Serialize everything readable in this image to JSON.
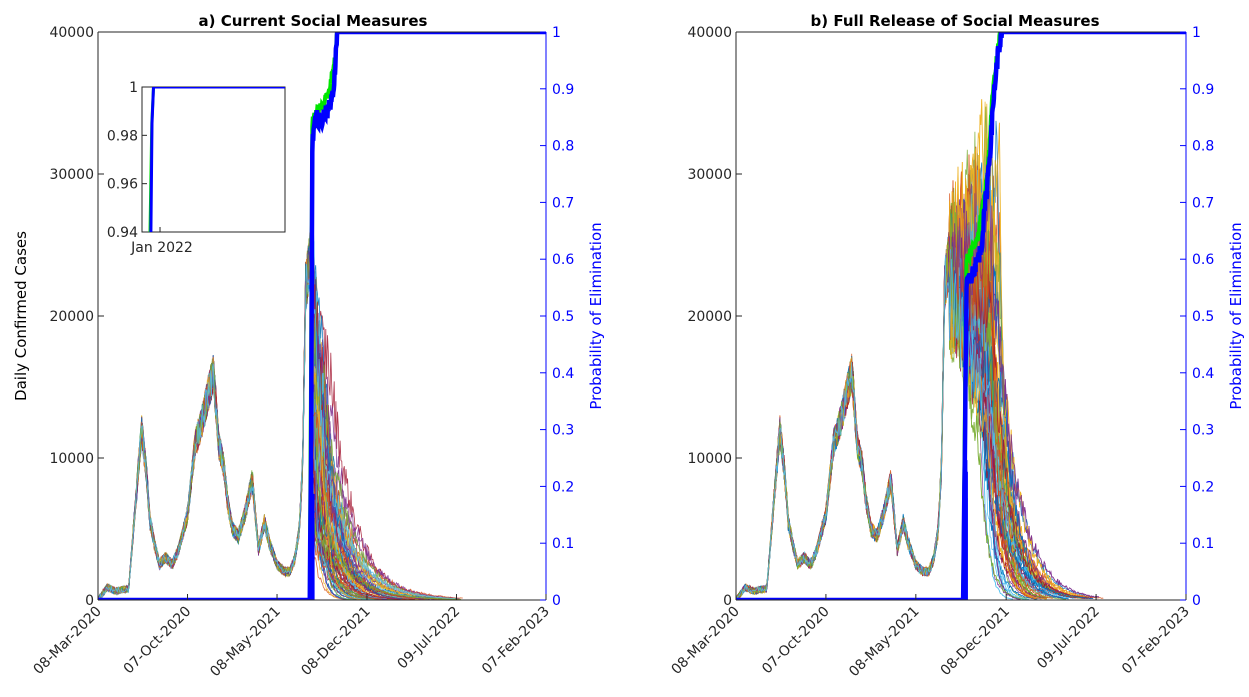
{
  "chart_data": [
    {
      "type": "line",
      "title": "a) Current Social Measures",
      "ylabel": "Daily Confirmed Cases",
      "y2label": "Probability of Elimination",
      "x_ticks": [
        "08-Mar-2020",
        "07-Oct-2020",
        "08-May-2021",
        "08-Dec-2021",
        "09-Jul-2022",
        "07-Feb-2023"
      ],
      "xlim": [
        "08-Mar-2020",
        "07-Feb-2023"
      ],
      "ylim": [
        0,
        40000
      ],
      "y_ticks": [
        "0",
        "10000",
        "20000",
        "30000",
        "40000"
      ],
      "y2lim": [
        0,
        1
      ],
      "y2_ticks": [
        "0",
        "0.1",
        "0.2",
        "0.3",
        "0.4",
        "0.5",
        "0.6",
        "0.7",
        "0.8",
        "0.9",
        "1"
      ],
      "observed_cases": {
        "x": [
          "08-Mar-2020",
          "30-Mar-2020",
          "20-Apr-2020",
          "30-Apr-2020",
          "20-May-2020",
          "10-Jun-2020",
          "20-Jun-2020",
          "01-Jul-2020",
          "10-Jul-2020",
          "20-Jul-2020",
          "01-Aug-2020",
          "15-Aug-2020",
          "01-Sep-2020",
          "15-Sep-2020",
          "07-Oct-2020",
          "25-Oct-2020",
          "10-Nov-2020",
          "25-Nov-2020",
          "08-Dec-2020",
          "20-Dec-2020",
          "01-Jan-2021",
          "10-Jan-2021",
          "22-Jan-2021",
          "05-Feb-2021",
          "20-Feb-2021",
          "10-Mar-2021",
          "25-Mar-2021",
          "08-Apr-2021",
          "20-Apr-2021",
          "08-May-2021",
          "25-May-2021",
          "08-Jun-2021",
          "20-Jun-2021",
          "30-Jun-2021",
          "08-Jul-2021",
          "15-Jul-2021",
          "25-Jul-2021"
        ],
        "values": [
          0,
          900,
          600,
          700,
          800,
          8500,
          12000,
          9000,
          5500,
          4000,
          2500,
          3000,
          2500,
          3500,
          6000,
          11000,
          12500,
          14500,
          16000,
          11000,
          9500,
          7000,
          5000,
          4500,
          6000,
          8500,
          3500,
          5500,
          4000,
          2500,
          2000,
          2000,
          3000,
          5000,
          9500,
          22000,
          24000
        ]
      },
      "simulated_peak": {
        "date": "18-Aug-2021",
        "max_value": 28000
      },
      "simulated_decay_end": "09-Jul-2022",
      "elimination_probability": {
        "x": [
          "08-Mar-2020",
          "25-Jul-2021",
          "28-Jul-2021",
          "31-Jul-2021",
          "03-Aug-2021",
          "06-Aug-2021",
          "10-Aug-2021",
          "18-Aug-2021",
          "25-Aug-2021",
          "05-Sep-2021",
          "15-Sep-2021",
          "23-Sep-2021",
          "28-Sep-2021",
          "15-Oct-2021",
          "07-Feb-2023"
        ],
        "values": [
          0,
          0,
          0.26,
          0.8,
          0.83,
          0.84,
          0.85,
          0.84,
          0.85,
          0.86,
          0.88,
          0.93,
          1,
          1,
          1
        ]
      },
      "green_probability": {
        "x": [
          "25-Jul-2021",
          "31-Jul-2021",
          "10-Aug-2021",
          "25-Aug-2021",
          "10-Sep-2021",
          "23-Sep-2021",
          "28-Sep-2021",
          "07-Feb-2023"
        ],
        "values": [
          0,
          0.84,
          0.86,
          0.87,
          0.9,
          0.95,
          1,
          1
        ]
      },
      "colors": {
        "probability": "#0000ff",
        "green": "#00e600"
      },
      "inset": {
        "ylim": [
          0.94,
          1
        ],
        "y_ticks": [
          "0.94",
          "0.96",
          "0.98",
          "1"
        ],
        "x_tick": "Jan 2022",
        "blue": {
          "x": [
            "01-Dec-2021",
            "05-Dec-2021",
            "10-Dec-2021",
            "28-Feb-2023"
          ],
          "values": [
            0.94,
            0.985,
            1,
            1
          ]
        },
        "green": {
          "x": [
            "28-Nov-2021",
            "04-Dec-2021",
            "10-Dec-2021",
            "28-Feb-2023"
          ],
          "values": [
            0.94,
            0.985,
            1,
            1
          ]
        }
      }
    },
    {
      "type": "line",
      "title": "b) Full Release of Social Measures",
      "ylabel": "",
      "y2label": "Probability of Elimination",
      "x_ticks": [
        "08-Mar-2020",
        "07-Oct-2020",
        "08-May-2021",
        "08-Dec-2021",
        "09-Jul-2022",
        "07-Feb-2023"
      ],
      "xlim": [
        "08-Mar-2020",
        "07-Feb-2023"
      ],
      "ylim": [
        0,
        40000
      ],
      "y_ticks": [
        "0",
        "10000",
        "20000",
        "30000",
        "40000"
      ],
      "y2lim": [
        0,
        1
      ],
      "y2_ticks": [
        "0",
        "0.1",
        "0.2",
        "0.3",
        "0.4",
        "0.5",
        "0.6",
        "0.7",
        "0.8",
        "0.9",
        "1"
      ],
      "observed_cases": {
        "x": [
          "08-Mar-2020",
          "30-Mar-2020",
          "20-Apr-2020",
          "30-Apr-2020",
          "20-May-2020",
          "10-Jun-2020",
          "20-Jun-2020",
          "01-Jul-2020",
          "10-Jul-2020",
          "20-Jul-2020",
          "01-Aug-2020",
          "15-Aug-2020",
          "01-Sep-2020",
          "15-Sep-2020",
          "07-Oct-2020",
          "25-Oct-2020",
          "10-Nov-2020",
          "25-Nov-2020",
          "08-Dec-2020",
          "20-Dec-2020",
          "01-Jan-2021",
          "10-Jan-2021",
          "22-Jan-2021",
          "05-Feb-2021",
          "20-Feb-2021",
          "10-Mar-2021",
          "25-Mar-2021",
          "08-Apr-2021",
          "20-Apr-2021",
          "08-May-2021",
          "25-May-2021",
          "08-Jun-2021",
          "20-Jun-2021",
          "30-Jun-2021",
          "08-Jul-2021",
          "15-Jul-2021",
          "25-Jul-2021"
        ],
        "values": [
          0,
          900,
          600,
          700,
          800,
          8500,
          12000,
          9000,
          5500,
          4000,
          2500,
          3000,
          2500,
          3500,
          6000,
          11000,
          12500,
          14500,
          16000,
          11000,
          9500,
          7000,
          5000,
          4500,
          6000,
          8500,
          3500,
          5500,
          4000,
          2500,
          2000,
          2000,
          3000,
          5000,
          9500,
          22000,
          24000
        ]
      },
      "simulated_peak": {
        "date": "25-Oct-2021",
        "max_value": 40000
      },
      "simulated_decay_end": "09-Jul-2022",
      "elimination_probability": {
        "x": [
          "08-Mar-2020",
          "28-Aug-2021",
          "01-Sep-2021",
          "05-Sep-2021",
          "12-Sep-2021",
          "22-Sep-2021",
          "01-Oct-2021",
          "10-Oct-2021",
          "20-Oct-2021",
          "01-Nov-2021",
          "10-Nov-2021",
          "20-Nov-2021",
          "30-Nov-2021",
          "07-Feb-2023"
        ],
        "values": [
          0,
          0,
          0.25,
          0.55,
          0.57,
          0.58,
          0.6,
          0.62,
          0.7,
          0.8,
          0.9,
          0.97,
          1,
          1
        ]
      },
      "green_probability": {
        "x": [
          "28-Aug-2021",
          "05-Sep-2021",
          "20-Sep-2021",
          "01-Oct-2021",
          "10-Oct-2021",
          "25-Oct-2021",
          "05-Nov-2021",
          "15-Nov-2021",
          "25-Nov-2021",
          "07-Feb-2023"
        ],
        "values": [
          0,
          0.6,
          0.62,
          0.63,
          0.68,
          0.75,
          0.88,
          0.95,
          1,
          1
        ]
      },
      "colors": {
        "probability": "#0000ff",
        "green": "#00e600"
      }
    }
  ]
}
